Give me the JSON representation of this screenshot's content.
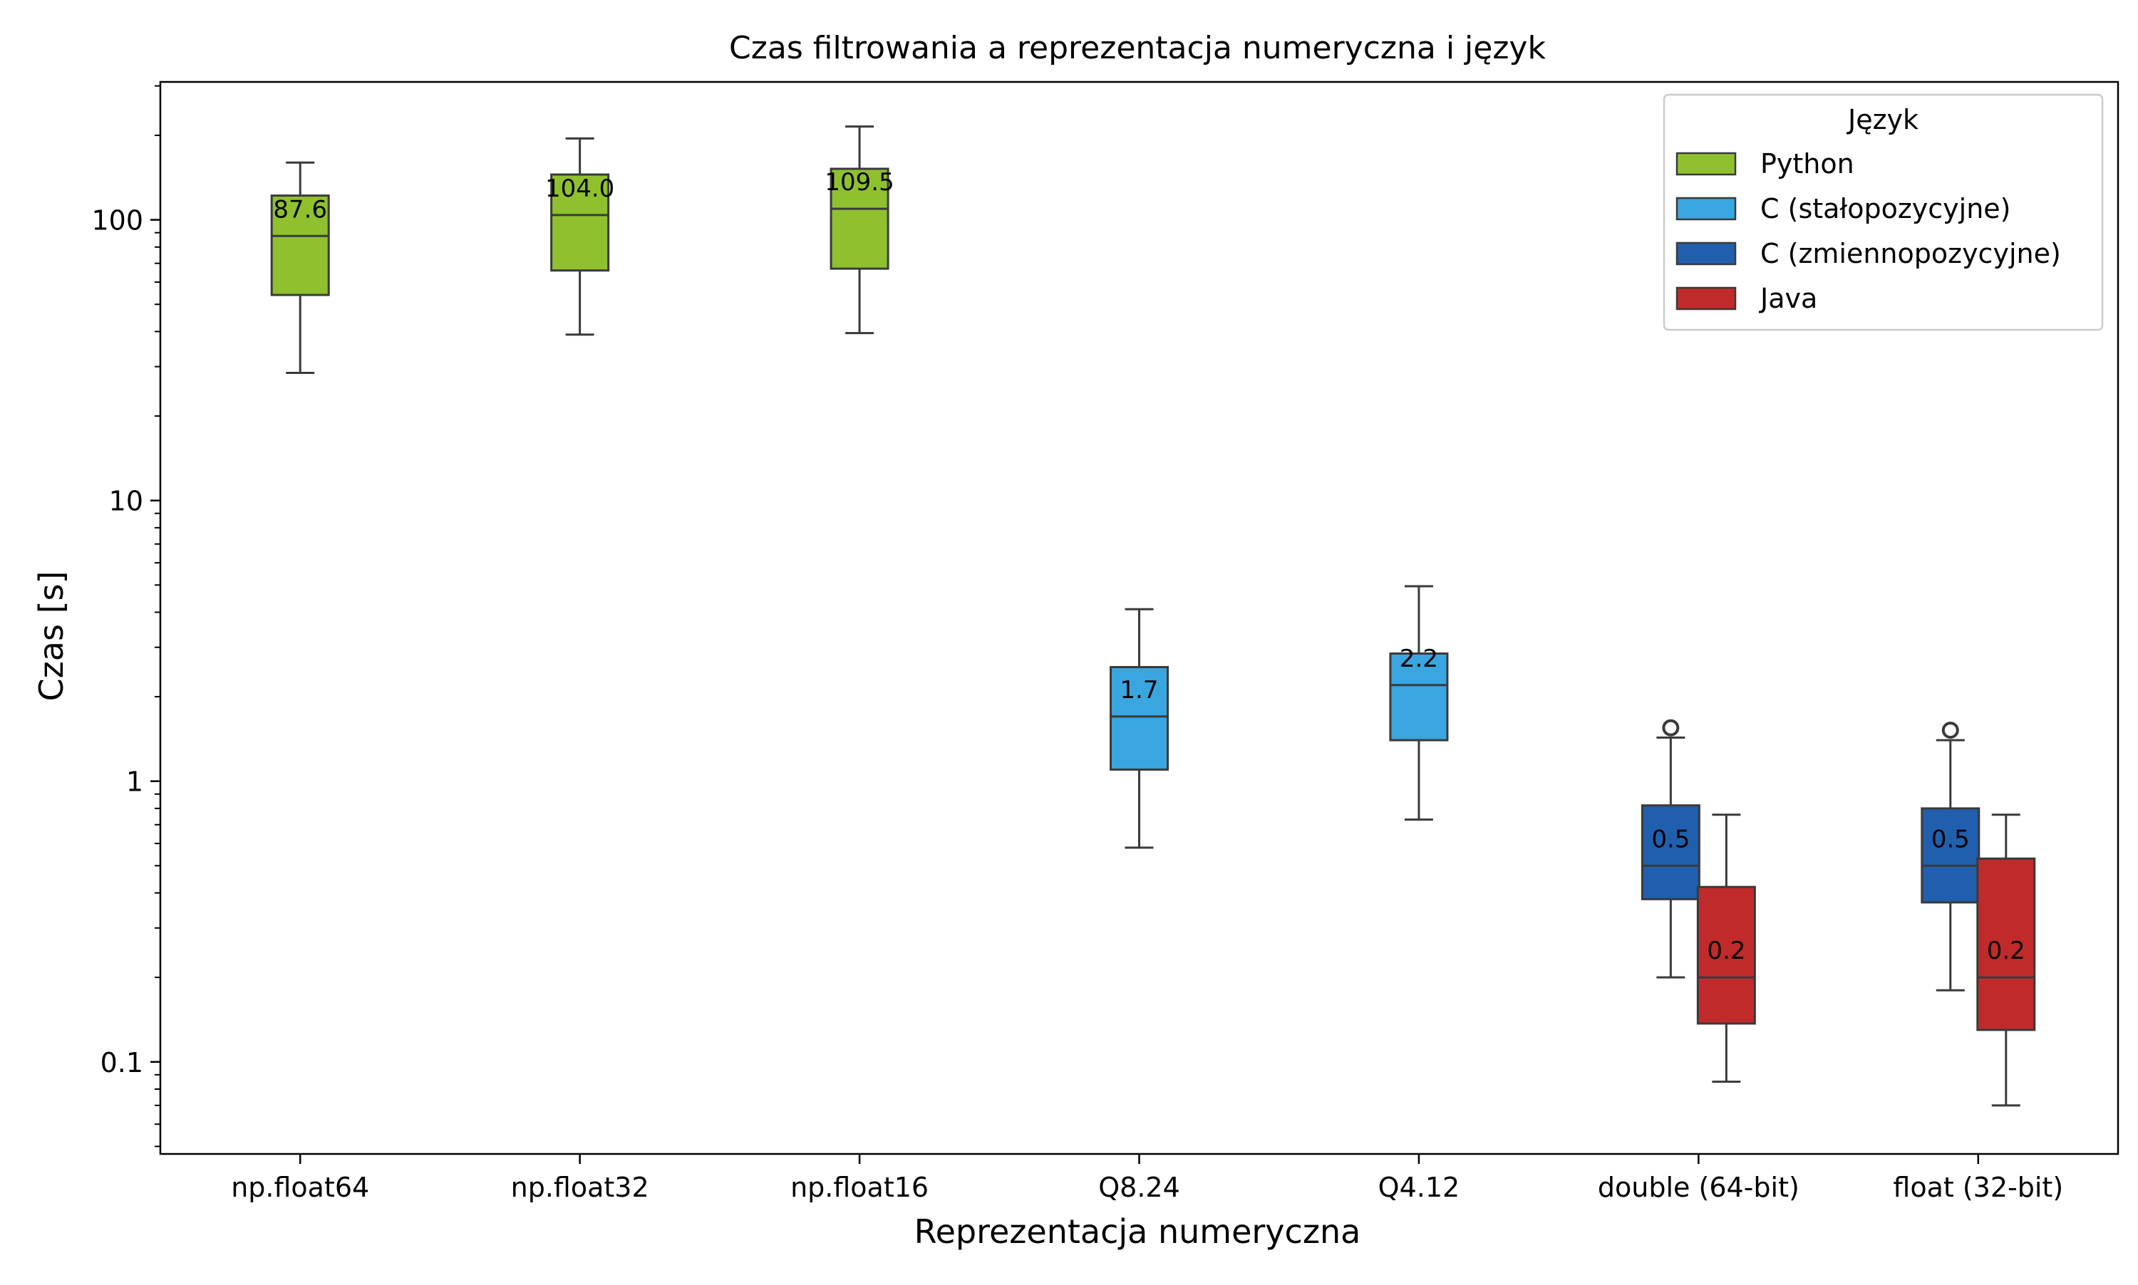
{
  "chart_data": {
    "type": "box",
    "title": "Czas filtrowania a reprezentacja numeryczna i język",
    "xlabel": "Reprezentacja numeryczna",
    "ylabel": "Czas [s]",
    "yscale": "log",
    "ylim": [
      0.047,
      310
    ],
    "ytick_values": [
      0.1,
      1,
      10,
      100
    ],
    "ytick_labels": [
      "0.1",
      "1",
      "10",
      "100"
    ],
    "categories": [
      "np.float64",
      "np.float32",
      "np.float16",
      "Q8.24",
      "Q4.12",
      "double (64-bit)",
      "float (32-bit)"
    ],
    "legend": {
      "title": "Język",
      "position": "top-right",
      "entries": [
        "Python",
        "C (stałopozycyjne)",
        "C (zmiennopozycyjne)",
        "Java"
      ]
    },
    "series": [
      {
        "name": "Python",
        "color": "#8fc12f"
      },
      {
        "name": "C (stałopozycyjne)",
        "color": "#3aa6e0"
      },
      {
        "name": "C (zmiennopozycyjne)",
        "color": "#1f5fae"
      },
      {
        "name": "Java",
        "color": "#c02a2a"
      }
    ],
    "boxes": [
      {
        "category": "np.float64",
        "series": "Python",
        "whisker_low": 28.5,
        "q1": 54,
        "median": 87.6,
        "q3": 122,
        "whisker_high": 160,
        "outliers": [],
        "label": "87.6"
      },
      {
        "category": "np.float32",
        "series": "Python",
        "whisker_low": 39,
        "q1": 66,
        "median": 104.0,
        "q3": 145,
        "whisker_high": 195,
        "outliers": [],
        "label": "104.0"
      },
      {
        "category": "np.float16",
        "series": "Python",
        "whisker_low": 39.5,
        "q1": 67,
        "median": 109.5,
        "q3": 152,
        "whisker_high": 215,
        "outliers": [],
        "label": "109.5"
      },
      {
        "category": "Q8.24",
        "series": "C (stałopozycyjne)",
        "whisker_low": 0.58,
        "q1": 1.1,
        "median": 1.7,
        "q3": 2.55,
        "whisker_high": 4.1,
        "outliers": [],
        "label": "1.7"
      },
      {
        "category": "Q4.12",
        "series": "C (stałopozycyjne)",
        "whisker_low": 0.73,
        "q1": 1.4,
        "median": 2.2,
        "q3": 2.85,
        "whisker_high": 4.95,
        "outliers": [],
        "label": "2.2"
      },
      {
        "category": "double (64-bit)",
        "series": "C (zmiennopozycyjne)",
        "whisker_low": 0.2,
        "q1": 0.38,
        "median": 0.5,
        "q3": 0.82,
        "whisker_high": 1.43,
        "outliers": [
          1.55
        ],
        "label": "0.5"
      },
      {
        "category": "double (64-bit)",
        "series": "Java",
        "whisker_low": 0.085,
        "q1": 0.137,
        "median": 0.2,
        "q3": 0.42,
        "whisker_high": 0.76,
        "outliers": [],
        "label": "0.2"
      },
      {
        "category": "float (32-bit)",
        "series": "C (zmiennopozycyjne)",
        "whisker_low": 0.18,
        "q1": 0.37,
        "median": 0.5,
        "q3": 0.8,
        "whisker_high": 1.4,
        "outliers": [
          1.52
        ],
        "label": "0.5"
      },
      {
        "category": "float (32-bit)",
        "series": "Java",
        "whisker_low": 0.07,
        "q1": 0.13,
        "median": 0.2,
        "q3": 0.53,
        "whisker_high": 0.76,
        "outliers": [],
        "label": "0.2"
      }
    ]
  }
}
